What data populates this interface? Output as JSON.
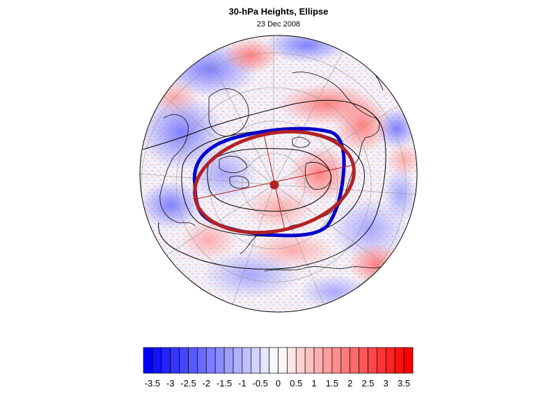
{
  "figure": {
    "title": "30-hPa Heights, Ellipse",
    "subtitle": "23 Dec 2008"
  },
  "map": {
    "projection": "polar-stereographic",
    "hemisphere": "north",
    "field": "height-anomaly",
    "overlays": [
      "coastlines",
      "graticule",
      "height-contours",
      "fitted-ellipse"
    ],
    "colors": {
      "ellipse_blue": "#0000cc",
      "ellipse_red": "#b22222",
      "contour": "#000000",
      "graticule": "#9a9a9a"
    }
  },
  "colorbar": {
    "min": -3.75,
    "max": 3.75,
    "step": 0.25,
    "tick_labels": [
      "-3.5",
      "-3",
      "-2.5",
      "-2",
      "-1.5",
      "-1",
      "-0.5",
      "0",
      "0.5",
      "1",
      "1.5",
      "2",
      "2.5",
      "3",
      "3.5"
    ],
    "tick_values": [
      -3.5,
      -3,
      -2.5,
      -2,
      -1.5,
      -1,
      -0.5,
      0,
      0.5,
      1,
      1.5,
      2,
      2.5,
      3,
      3.5
    ],
    "color_negative": "#0000ff",
    "color_positive": "#ff0000",
    "color_center": "#ffffff"
  }
}
